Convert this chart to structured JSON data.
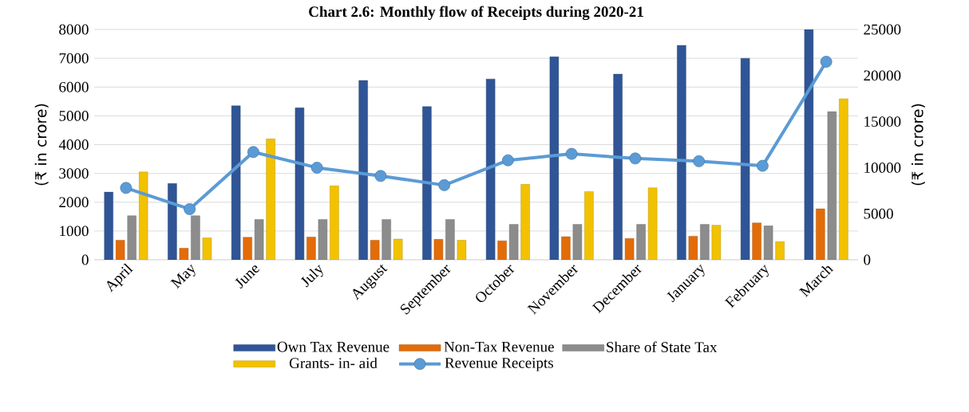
{
  "chart_data": {
    "type": "bar",
    "title": "Chart 2.6: Monthly flow of Receipts during 2020-21",
    "ylabel": "(₹ in crore)",
    "y2label": "(₹ in crore)",
    "categories": [
      "April",
      "May",
      "June",
      "July",
      "August",
      "September",
      "October",
      "November",
      "December",
      "January",
      "February",
      "March"
    ],
    "series": [
      {
        "name": "Own Tax Revenue",
        "color": "#2f5597",
        "values": [
          2350,
          2650,
          5350,
          5280,
          6230,
          5320,
          6280,
          7050,
          6450,
          7450,
          7000,
          8000
        ]
      },
      {
        "name": "Non-Tax Revenue",
        "color": "#e36c09",
        "values": [
          680,
          400,
          780,
          790,
          680,
          710,
          660,
          800,
          740,
          820,
          1280,
          1770
        ]
      },
      {
        "name": "Share of State Tax",
        "color": "#8c8c8c",
        "values": [
          1530,
          1530,
          1400,
          1400,
          1400,
          1400,
          1230,
          1230,
          1230,
          1230,
          1180,
          5150
        ]
      },
      {
        "name": "Grants- in- aid",
        "color": "#f2c200",
        "values": [
          3050,
          760,
          4200,
          2570,
          720,
          680,
          2620,
          2370,
          2500,
          1200,
          630,
          5600
        ]
      },
      {
        "name": "Revenue Receipts",
        "type": "line",
        "axis": "y2",
        "color": "#5b9bd5",
        "values": [
          7800,
          5500,
          11700,
          10000,
          9100,
          8100,
          10800,
          11500,
          11000,
          10700,
          10200,
          21500
        ]
      }
    ],
    "ylim": [
      0,
      8000
    ],
    "yticks": [
      0,
      1000,
      2000,
      3000,
      4000,
      5000,
      6000,
      7000,
      8000
    ],
    "y2lim": [
      0,
      25000
    ],
    "y2ticks": [
      0,
      5000,
      10000,
      15000,
      20000,
      25000
    ],
    "grid": "y",
    "legend": "bottom",
    "marker": "circle"
  }
}
